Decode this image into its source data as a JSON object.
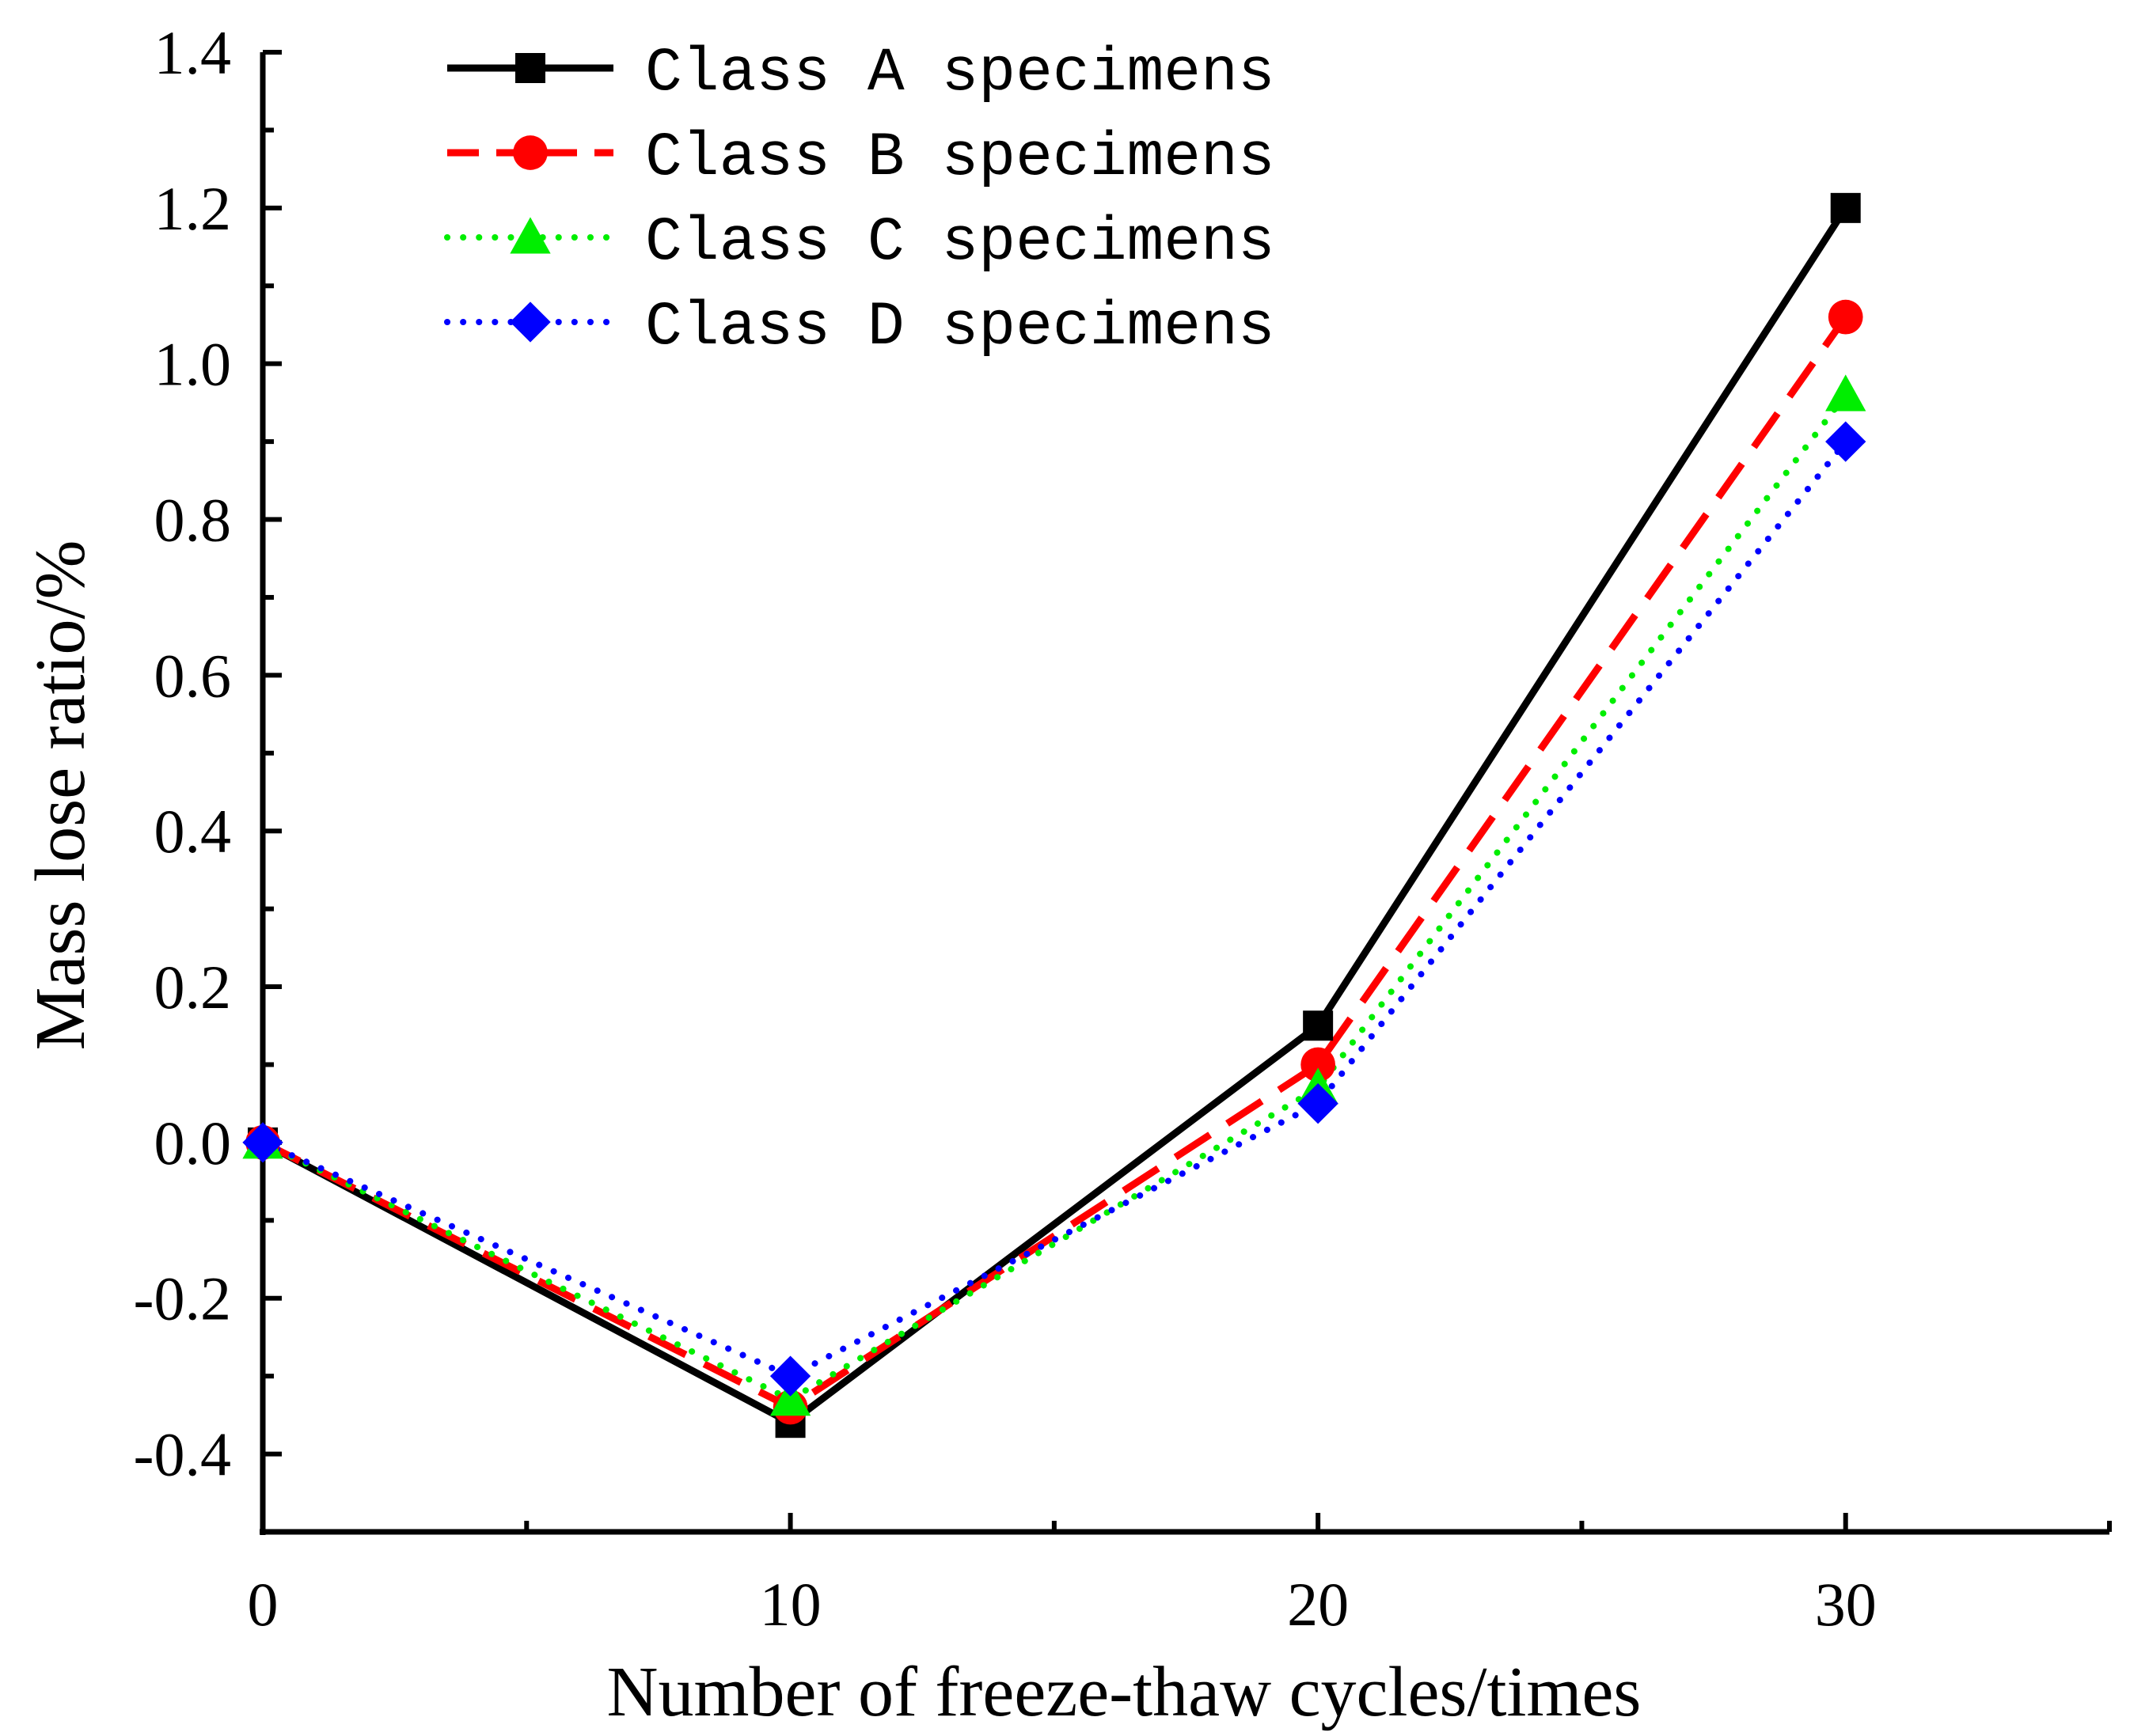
{
  "chart_data": {
    "type": "line",
    "title": "",
    "xlabel": "Number of freeze-thaw cycles/times",
    "ylabel": "Mass lose ratio/%",
    "xlim": [
      0,
      35
    ],
    "ylim": [
      -0.5,
      1.4
    ],
    "x_ticks": [
      0,
      10,
      20,
      30
    ],
    "x_tick_labels": [
      "0",
      "10",
      "20",
      "30"
    ],
    "y_ticks": [
      -0.4,
      -0.2,
      0.0,
      0.2,
      0.4,
      0.6,
      0.8,
      1.0,
      1.2,
      1.4
    ],
    "y_tick_labels": [
      "-0.4",
      "-0.2",
      "0.0",
      "0.2",
      "0.4",
      "0.6",
      "0.8",
      "1.0",
      "1.2",
      "1.4"
    ],
    "x": [
      0,
      10,
      20,
      30
    ],
    "legend_position": "top-left",
    "grid": false,
    "series": [
      {
        "name": "Class A specimens",
        "values": [
          0.0,
          -0.36,
          0.15,
          1.2
        ],
        "color": "#000000",
        "marker": "square",
        "line_style": "solid"
      },
      {
        "name": "Class B specimens",
        "values": [
          0.0,
          -0.34,
          0.1,
          1.06
        ],
        "color": "#ff0000",
        "marker": "circle",
        "line_style": "dashed"
      },
      {
        "name": "Class C specimens",
        "values": [
          0.0,
          -0.33,
          0.07,
          0.96
        ],
        "color": "#00ee00",
        "marker": "triangle",
        "line_style": "dotted"
      },
      {
        "name": "Class D specimens",
        "values": [
          0.0,
          -0.3,
          0.05,
          0.9
        ],
        "color": "#0000ff",
        "marker": "diamond",
        "line_style": "dotted"
      }
    ]
  }
}
